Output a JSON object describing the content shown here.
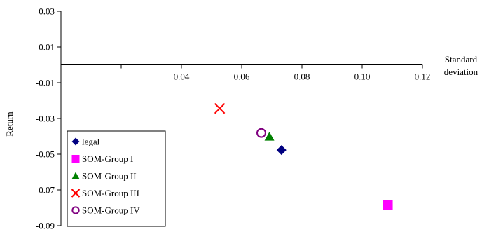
{
  "chart_data": {
    "type": "scatter",
    "xlabel_line1": "Standard",
    "xlabel_line2": "deviation",
    "ylabel": "Return",
    "xlim": [
      0.0,
      0.12
    ],
    "ylim": [
      -0.09,
      0.03
    ],
    "x_ticks": [
      {
        "value": 0.04,
        "label": "0.04"
      },
      {
        "value": 0.06,
        "label": "0.06"
      },
      {
        "value": 0.08,
        "label": "0.08"
      },
      {
        "value": 0.1,
        "label": "0.10"
      },
      {
        "value": 0.12,
        "label": "0.12"
      }
    ],
    "y_ticks": [
      {
        "value": 0.03,
        "label": "0.03"
      },
      {
        "value": 0.01,
        "label": "0.01"
      },
      {
        "value": -0.01,
        "label": "-0.01"
      },
      {
        "value": -0.03,
        "label": "-0.03"
      },
      {
        "value": -0.05,
        "label": "-0.05"
      },
      {
        "value": -0.07,
        "label": "-0.07"
      },
      {
        "value": -0.09,
        "label": "-0.09"
      }
    ],
    "legend_position": "bottom-left",
    "series": [
      {
        "name": "legal",
        "marker": "diamond",
        "color": "#000080",
        "x": 0.0732,
        "y": -0.0477
      },
      {
        "name": "SOM-Group I",
        "marker": "square",
        "color": "#ff00ff",
        "x": 0.1085,
        "y": -0.0783
      },
      {
        "name": "SOM-Group II",
        "marker": "triangle",
        "color": "#008000",
        "x": 0.0692,
        "y": -0.0402
      },
      {
        "name": "SOM-Group III",
        "marker": "x",
        "color": "#ff0000",
        "x": 0.0527,
        "y": -0.0244
      },
      {
        "name": "SOM-Group IV",
        "marker": "circle-open",
        "color": "#800080",
        "x": 0.0665,
        "y": -0.0381
      }
    ]
  }
}
